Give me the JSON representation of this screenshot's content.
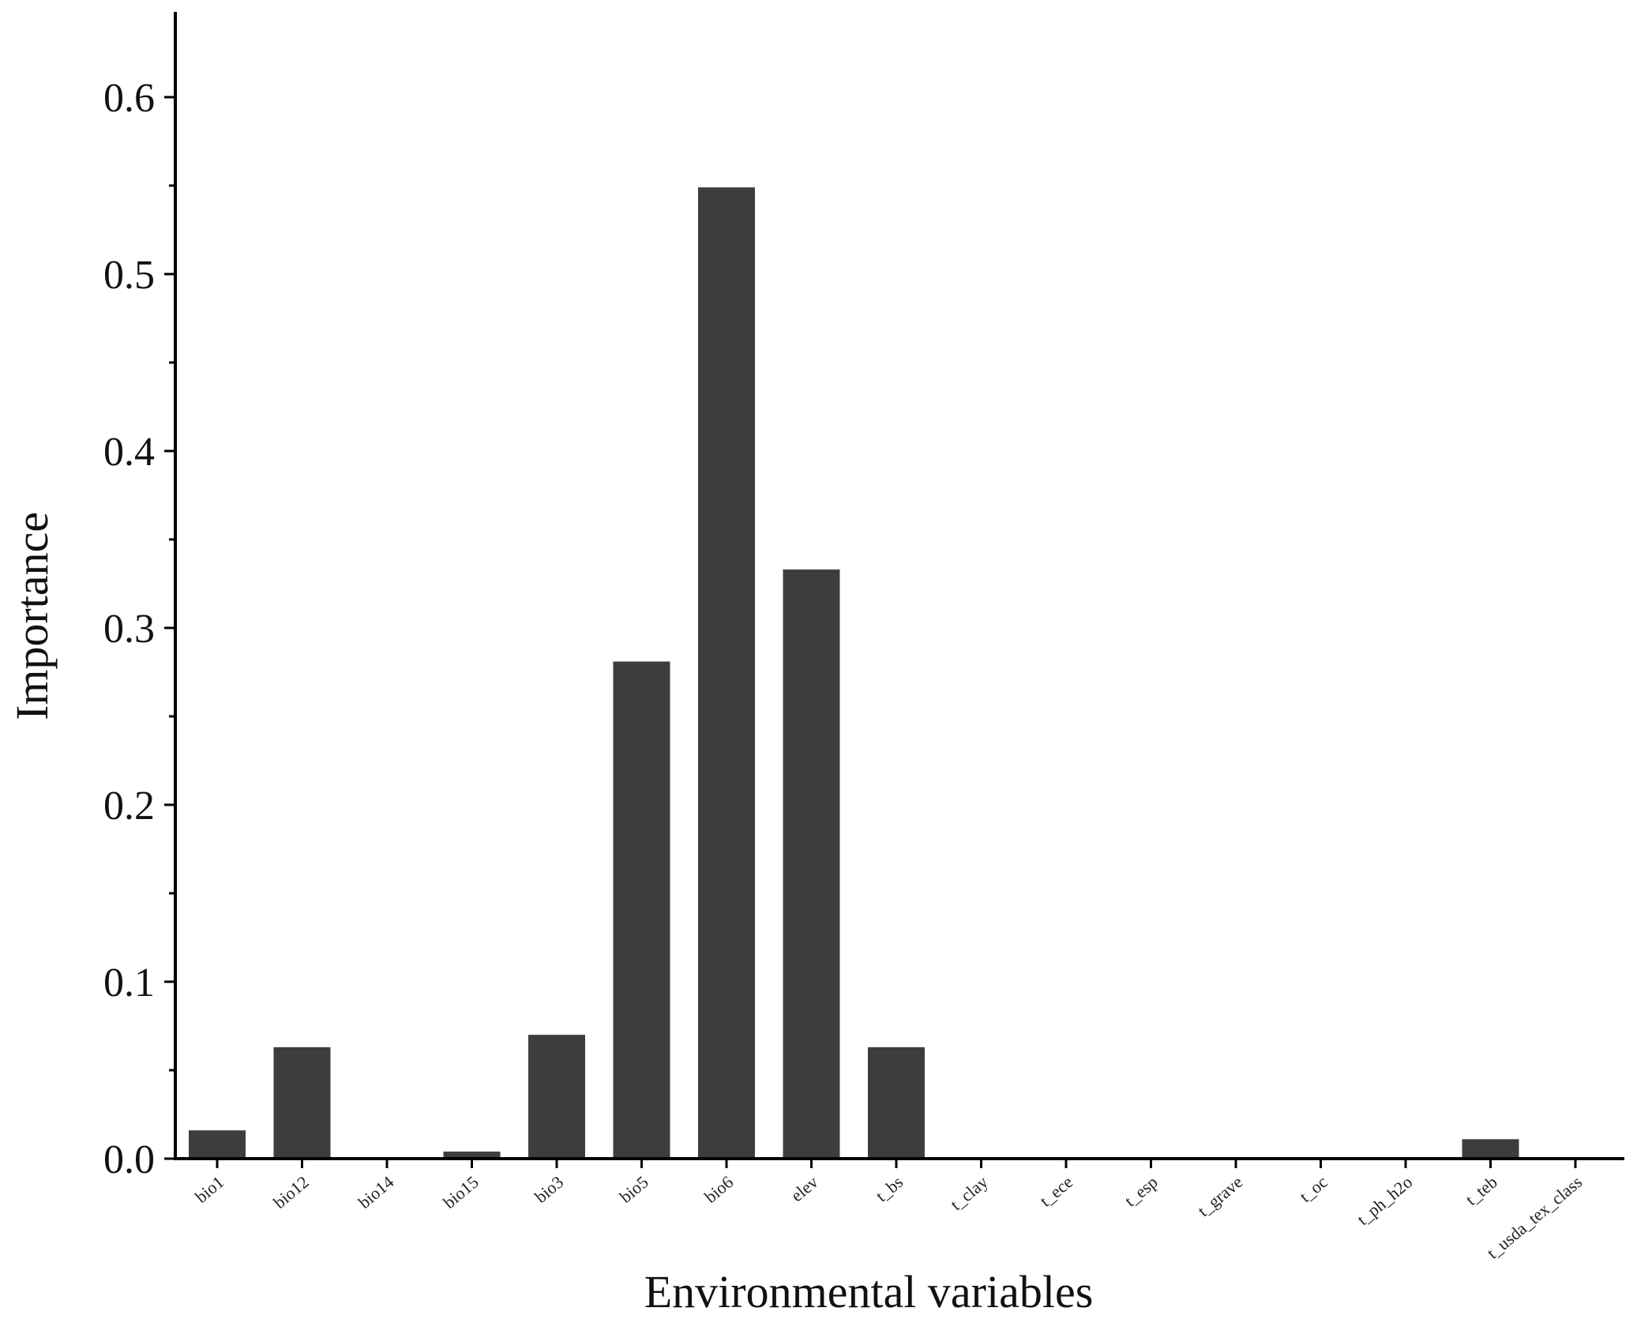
{
  "chart_data": {
    "type": "bar",
    "title": "",
    "xlabel": "Environmental variables",
    "ylabel": "Importance",
    "ylim": [
      0,
      0.65
    ],
    "yticks": [
      0.0,
      0.1,
      0.2,
      0.3,
      0.4,
      0.5,
      0.6
    ],
    "ytick_labels": [
      "0.0",
      "0.1",
      "0.2",
      "0.3",
      "0.4",
      "0.5",
      "0.6"
    ],
    "categories": [
      "bio1",
      "bio12",
      "bio14",
      "bio15",
      "bio3",
      "bio5",
      "bio6",
      "elev",
      "t_bs",
      "t_clay",
      "t_ece",
      "t_esp",
      "t_grave",
      "t_oc",
      "t_ph_h2o",
      "t_teb",
      "t_usda_tex_class"
    ],
    "values": [
      0.016,
      0.063,
      0.0,
      0.004,
      0.07,
      0.281,
      0.549,
      0.333,
      0.063,
      0.0,
      0.0,
      0.0,
      0.0,
      0.0,
      0.0,
      0.011,
      0.0
    ],
    "grid": false,
    "bar_color": "#3d3d3d"
  }
}
